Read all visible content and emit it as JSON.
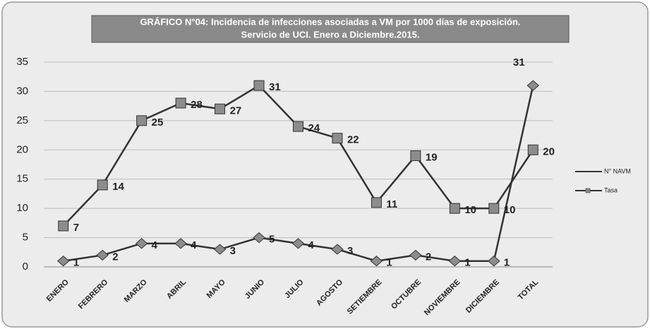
{
  "chart_data": {
    "type": "line",
    "title": "GRÁFICO N°04: Incidencia de infecciones asociadas a VM por 1000 días de exposición.",
    "subtitle": "Servicio de UCI. Enero a Diciembre.2015.",
    "categories": [
      "ENERO",
      "FEBRERO",
      "MARZO",
      "ABRIL",
      "MAYO",
      "JUNIO",
      "JULIO",
      "AGOSTO",
      "SETIEMBRE",
      "OCTUBRE",
      "NOVIEMBRE",
      "DICIEMBRE",
      "TOTAL"
    ],
    "series": [
      {
        "name": "N° NAVM",
        "color": "#8c8c8c",
        "marker": "diamond",
        "values": [
          1,
          2,
          4,
          4,
          3,
          5,
          4,
          3,
          1,
          2,
          1,
          1,
          31
        ]
      },
      {
        "name": "Tasa",
        "color": "#8c8c8c",
        "marker": "square",
        "values": [
          7,
          14,
          25,
          28,
          27,
          31,
          24,
          22,
          11,
          19,
          10,
          10,
          20
        ]
      }
    ],
    "ylim": [
      0,
      35
    ],
    "yticks": [
      0,
      5,
      10,
      15,
      20,
      25,
      30,
      35
    ],
    "grid": true,
    "legend": "right"
  }
}
